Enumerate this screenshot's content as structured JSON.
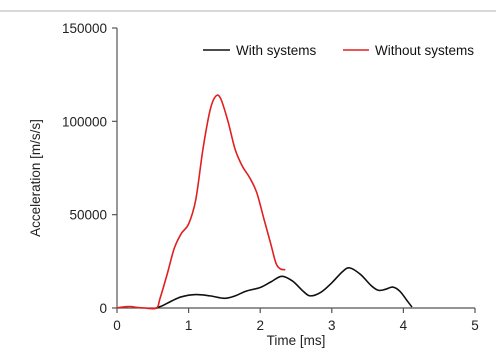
{
  "chart_data": {
    "type": "line",
    "title": "",
    "xlabel": "Time [ms]",
    "ylabel": "Acceleration [m/s/s]",
    "xlim": [
      0,
      5
    ],
    "ylim": [
      0,
      150000
    ],
    "x_ticks": [
      0,
      1,
      2,
      3,
      4,
      5
    ],
    "x_tick_labels": [
      "0",
      "1",
      "2",
      "3",
      "4",
      "5"
    ],
    "y_ticks": [
      0,
      50000,
      100000,
      150000
    ],
    "y_tick_labels": [
      "0",
      "50000",
      "100000",
      "150000"
    ],
    "grid": false,
    "legend_position": "top-right",
    "series": [
      {
        "name": "With systems",
        "color": "#111111",
        "points": [
          [
            0.55,
            0
          ],
          [
            0.65,
            1500
          ],
          [
            0.75,
            3500
          ],
          [
            0.9,
            6000
          ],
          [
            1.1,
            7200
          ],
          [
            1.3,
            6500
          ],
          [
            1.5,
            5200
          ],
          [
            1.65,
            6500
          ],
          [
            1.8,
            9000
          ],
          [
            2.0,
            11000
          ],
          [
            2.15,
            14000
          ],
          [
            2.3,
            17000
          ],
          [
            2.45,
            14500
          ],
          [
            2.6,
            9000
          ],
          [
            2.7,
            6500
          ],
          [
            2.85,
            8500
          ],
          [
            3.0,
            13500
          ],
          [
            3.15,
            19500
          ],
          [
            3.25,
            21500
          ],
          [
            3.4,
            18000
          ],
          [
            3.55,
            12000
          ],
          [
            3.65,
            9500
          ],
          [
            3.75,
            10000
          ],
          [
            3.85,
            11200
          ],
          [
            3.95,
            9000
          ],
          [
            4.05,
            4000
          ],
          [
            4.12,
            500
          ]
        ]
      },
      {
        "name": "Without systems",
        "color": "#e02020",
        "points": [
          [
            0.0,
            0
          ],
          [
            0.08,
            500
          ],
          [
            0.18,
            800
          ],
          [
            0.28,
            300
          ],
          [
            0.38,
            0
          ],
          [
            0.55,
            0
          ],
          [
            0.6,
            5000
          ],
          [
            0.7,
            18000
          ],
          [
            0.8,
            32000
          ],
          [
            0.9,
            40000
          ],
          [
            1.0,
            45000
          ],
          [
            1.1,
            58000
          ],
          [
            1.2,
            85000
          ],
          [
            1.3,
            106000
          ],
          [
            1.38,
            113500
          ],
          [
            1.45,
            112000
          ],
          [
            1.55,
            100000
          ],
          [
            1.65,
            85000
          ],
          [
            1.75,
            76000
          ],
          [
            1.85,
            70000
          ],
          [
            1.95,
            62000
          ],
          [
            2.05,
            48000
          ],
          [
            2.15,
            34000
          ],
          [
            2.22,
            24000
          ],
          [
            2.28,
            21000
          ],
          [
            2.35,
            20500
          ]
        ]
      }
    ]
  }
}
